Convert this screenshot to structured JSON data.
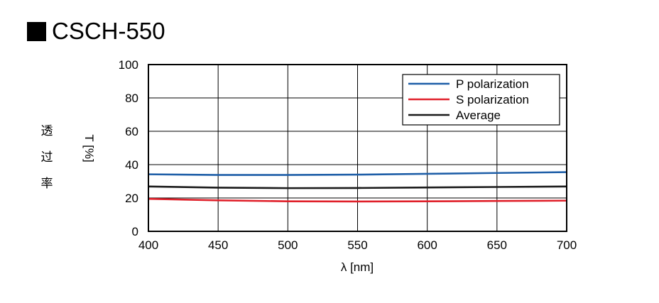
{
  "title": "CSCH-550",
  "ylabel_jp": [
    "透",
    "过",
    "率"
  ],
  "chart_data": {
    "type": "line",
    "title": "CSCH-550",
    "xlabel": "λ [nm]",
    "ylabel": "T [%]",
    "xlim": [
      400,
      700
    ],
    "ylim": [
      0,
      100
    ],
    "xticks": [
      400,
      450,
      500,
      550,
      600,
      650,
      700
    ],
    "yticks": [
      0,
      20,
      40,
      60,
      80,
      100
    ],
    "grid": true,
    "legend_position": "top-right",
    "series": [
      {
        "name": "P polarization",
        "color": "#1f5fa8",
        "x": [
          400,
          450,
          500,
          550,
          600,
          650,
          700
        ],
        "y": [
          34.2,
          33.8,
          33.8,
          34.0,
          34.5,
          35.0,
          35.5
        ]
      },
      {
        "name": "S polarization",
        "color": "#e0202a",
        "x": [
          400,
          450,
          500,
          550,
          600,
          650,
          700
        ],
        "y": [
          19.5,
          18.6,
          18.0,
          17.9,
          18.0,
          18.2,
          18.4
        ]
      },
      {
        "name": "Average",
        "color": "#1a1a1a",
        "x": [
          400,
          450,
          500,
          550,
          600,
          650,
          700
        ],
        "y": [
          26.9,
          26.2,
          25.9,
          26.0,
          26.3,
          26.6,
          26.9
        ]
      }
    ]
  }
}
